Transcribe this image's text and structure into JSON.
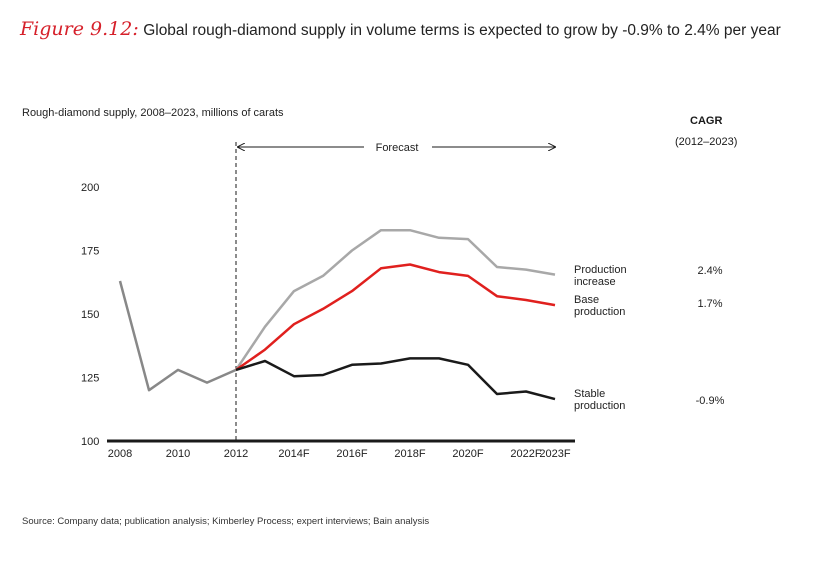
{
  "figure": {
    "label": "Figure 9.12:",
    "title": "Global rough-diamond supply in volume terms is expected to grow by -0.9% to 2.4% per year",
    "source": "Source:  Company data; publication analysis; Kimberley Process; expert interviews; Bain analysis"
  },
  "cagr": {
    "title": "CAGR",
    "period": "(2012–2023)"
  },
  "chart_data": {
    "type": "line",
    "title": "",
    "subtitle": "Rough-diamond supply, 2008–2023, millions of carats",
    "x": [
      "2008",
      "2009",
      "2010",
      "2011",
      "2012",
      "2013",
      "2014F",
      "2015F",
      "2016F",
      "2017F",
      "2018F",
      "2019F",
      "2020F",
      "2021F",
      "2022F",
      "2023F"
    ],
    "x_tick_labels": [
      "2008",
      "2010",
      "2012",
      "2014F",
      "2016F",
      "2018F",
      "2020F",
      "2022F",
      "2023F"
    ],
    "y_ticks": [
      100,
      125,
      150,
      175,
      200
    ],
    "ylim": [
      100,
      205
    ],
    "grid": false,
    "forecast": {
      "label": "Forecast",
      "start": "2012",
      "end": "2023F"
    },
    "history": {
      "x": [
        "2008",
        "2009",
        "2010",
        "2011",
        "2012"
      ],
      "values": [
        163,
        120,
        128,
        123,
        128
      ],
      "color": "#888888"
    },
    "series": [
      {
        "key": "production-increase",
        "label": [
          "Production",
          "increase"
        ],
        "cagr": "2.4%",
        "color": "#a8a8a8",
        "x": [
          "2012",
          "2013",
          "2014F",
          "2015F",
          "2016F",
          "2017F",
          "2018F",
          "2019F",
          "2020F",
          "2021F",
          "2022F",
          "2023F"
        ],
        "values": [
          128,
          145,
          159,
          165,
          175,
          183,
          183,
          180,
          179.5,
          168.5,
          167.5,
          165.5
        ]
      },
      {
        "key": "base-production",
        "label": [
          "Base",
          "production"
        ],
        "cagr": "1.7%",
        "color": "#e0201e",
        "x": [
          "2012",
          "2013",
          "2014F",
          "2015F",
          "2016F",
          "2017F",
          "2018F",
          "2019F",
          "2020F",
          "2021F",
          "2022F",
          "2023F"
        ],
        "values": [
          128,
          136,
          146,
          152,
          159,
          168,
          169.5,
          166.5,
          165,
          157,
          155.5,
          153.5
        ]
      },
      {
        "key": "stable-production",
        "label": [
          "Stable",
          "production"
        ],
        "cagr": "-0.9%",
        "color": "#1a1a1a",
        "x": [
          "2012",
          "2013",
          "2014F",
          "2015F",
          "2016F",
          "2017F",
          "2018F",
          "2019F",
          "2020F",
          "2021F",
          "2022F",
          "2023F"
        ],
        "values": [
          128,
          131.5,
          125.5,
          126,
          130,
          130.5,
          132.5,
          132.5,
          130,
          118.5,
          119.5,
          116.5
        ]
      }
    ]
  }
}
